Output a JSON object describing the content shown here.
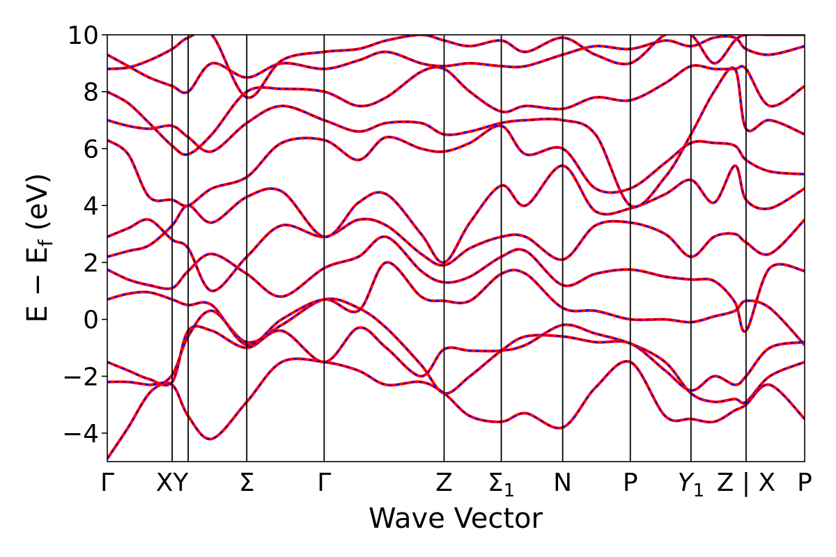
{
  "chart_data": {
    "type": "line",
    "title": "",
    "xlabel": "Wave Vector",
    "ylabel_main": "E − E",
    "ylabel_sub": "f",
    "ylabel_tail": " (eV)",
    "ylim": [
      -5,
      10
    ],
    "yticks": [
      -4,
      -2,
      0,
      2,
      4,
      6,
      8,
      10
    ],
    "ytick_labels": [
      "−4",
      "−2",
      "0",
      "2",
      "4",
      "6",
      "8",
      "10"
    ],
    "xlim": [
      0,
      1
    ],
    "grid": false,
    "legend": "none",
    "kpoints": [
      {
        "pos": 0.0,
        "label": "Γ"
      },
      {
        "pos": 0.093,
        "label": "XY"
      },
      {
        "pos": 0.2,
        "label": "Σ"
      },
      {
        "pos": 0.311,
        "label": "Γ"
      },
      {
        "pos": 0.483,
        "label": "Z"
      },
      {
        "pos": 0.565,
        "label": "Σ",
        "sub": "1"
      },
      {
        "pos": 0.653,
        "label": "N"
      },
      {
        "pos": 0.75,
        "label": "P"
      },
      {
        "pos": 0.837,
        "label": "Y",
        "sub": "1",
        "italic": true
      },
      {
        "pos": 0.916,
        "label": "Z | X"
      },
      {
        "pos": 1.0,
        "label": "P"
      }
    ],
    "kpoint_lines": [
      0.093,
      0.116,
      0.2,
      0.311,
      0.483,
      0.565,
      0.653,
      0.75,
      0.837,
      0.916
    ],
    "series_style": {
      "primary_color": "#ff0000",
      "overlay_color": "#0000ff",
      "overlay_dashed": true
    },
    "series": [
      {
        "x": [
          0,
          0.03,
          0.06,
          0.093,
          0.116,
          0.15,
          0.2,
          0.25,
          0.311,
          0.36,
          0.4,
          0.45,
          0.483,
          0.52,
          0.565,
          0.6,
          0.653,
          0.7,
          0.75,
          0.8,
          0.837,
          0.87,
          0.9,
          0.916,
          0.95,
          1.0
        ],
        "y": [
          -4.9,
          -3.8,
          -2.6,
          -1.95,
          -0.6,
          0.3,
          -0.8,
          -0.2,
          0.7,
          0.4,
          -0.3,
          -1.6,
          -2.6,
          -2.0,
          -1.1,
          -0.6,
          -0.6,
          -0.8,
          -0.85,
          -1.8,
          -2.5,
          -2.0,
          -2.3,
          -2.0,
          -1.0,
          -0.8
        ]
      },
      {
        "x": [
          0,
          0.03,
          0.06,
          0.093,
          0.116,
          0.15,
          0.2,
          0.25,
          0.311,
          0.36,
          0.4,
          0.45,
          0.483,
          0.52,
          0.565,
          0.6,
          0.653,
          0.7,
          0.75,
          0.8,
          0.837,
          0.87,
          0.9,
          0.916,
          0.95,
          1.0
        ],
        "y": [
          -1.5,
          -1.8,
          -2.1,
          -2.2,
          -0.4,
          -0.4,
          -1.0,
          -0.4,
          -1.5,
          -0.3,
          -1.0,
          -2.0,
          -1.05,
          -1.1,
          -1.1,
          -0.9,
          -0.2,
          -0.5,
          -0.85,
          -1.5,
          -2.6,
          -2.9,
          -2.8,
          -2.9,
          -2.0,
          -1.5
        ]
      },
      {
        "x": [
          0,
          0.03,
          0.06,
          0.093,
          0.116,
          0.15,
          0.2,
          0.25,
          0.311,
          0.36,
          0.4,
          0.45,
          0.483,
          0.52,
          0.565,
          0.6,
          0.653,
          0.7,
          0.75,
          0.8,
          0.837,
          0.87,
          0.9,
          0.916,
          0.95,
          1.0
        ],
        "y": [
          -2.2,
          -2.2,
          -2.3,
          -2.3,
          -3.4,
          -4.2,
          -2.9,
          -1.5,
          -1.5,
          -1.8,
          -2.3,
          -2.2,
          -2.6,
          -3.4,
          -3.6,
          -3.3,
          -3.8,
          -2.4,
          -1.5,
          -3.4,
          -3.5,
          -3.6,
          -3.2,
          -3.0,
          -2.3,
          -3.5
        ]
      },
      {
        "x": [
          0,
          0.03,
          0.06,
          0.093,
          0.116,
          0.15,
          0.2,
          0.25,
          0.311,
          0.36,
          0.4,
          0.45,
          0.483,
          0.52,
          0.565,
          0.6,
          0.653,
          0.7,
          0.75,
          0.8,
          0.837,
          0.87,
          0.9,
          0.916,
          0.95,
          1.0
        ],
        "y": [
          0.7,
          0.9,
          0.95,
          0.7,
          0.5,
          0.5,
          -0.9,
          0.0,
          0.7,
          0.3,
          2.0,
          0.8,
          0.65,
          0.65,
          1.6,
          1.6,
          0.4,
          0.3,
          0.0,
          0.0,
          -0.1,
          0.1,
          0.3,
          0.65,
          0.4,
          -0.9
        ]
      },
      {
        "x": [
          0,
          0.03,
          0.06,
          0.093,
          0.116,
          0.15,
          0.2,
          0.25,
          0.311,
          0.36,
          0.4,
          0.45,
          0.483,
          0.52,
          0.565,
          0.6,
          0.653,
          0.7,
          0.75,
          0.8,
          0.837,
          0.87,
          0.9,
          0.916,
          0.95,
          1.0
        ],
        "y": [
          1.75,
          1.4,
          1.2,
          1.1,
          1.7,
          2.3,
          1.6,
          0.8,
          1.8,
          2.2,
          2.9,
          1.7,
          1.3,
          1.5,
          2.2,
          2.4,
          1.2,
          1.6,
          1.75,
          1.5,
          1.4,
          1.35,
          0.6,
          -0.4,
          1.8,
          1.7
        ]
      },
      {
        "x": [
          0,
          0.03,
          0.06,
          0.093,
          0.116,
          0.15,
          0.2,
          0.25,
          0.311,
          0.36,
          0.4,
          0.45,
          0.483,
          0.52,
          0.565,
          0.6,
          0.653,
          0.7,
          0.75,
          0.8,
          0.837,
          0.87,
          0.9,
          0.916,
          0.95,
          1.0
        ],
        "y": [
          2.9,
          3.2,
          3.5,
          2.8,
          2.5,
          1.0,
          2.2,
          3.3,
          2.9,
          3.5,
          3.3,
          2.3,
          1.9,
          2.5,
          2.9,
          2.9,
          2.1,
          3.3,
          3.4,
          3.0,
          2.2,
          2.9,
          3.0,
          2.7,
          2.3,
          3.5
        ]
      },
      {
        "x": [
          0,
          0.03,
          0.06,
          0.093,
          0.116,
          0.15,
          0.2,
          0.25,
          0.311,
          0.36,
          0.4,
          0.45,
          0.483,
          0.52,
          0.565,
          0.6,
          0.653,
          0.7,
          0.75,
          0.8,
          0.837,
          0.87,
          0.9,
          0.916,
          0.95,
          1.0
        ],
        "y": [
          2.2,
          2.4,
          2.6,
          3.3,
          4.0,
          3.4,
          4.3,
          4.5,
          2.9,
          4.1,
          4.4,
          3.0,
          2.0,
          3.4,
          4.7,
          4.0,
          5.4,
          3.8,
          3.9,
          4.4,
          4.9,
          4.1,
          5.4,
          4.2,
          3.9,
          4.6
        ]
      },
      {
        "x": [
          0,
          0.03,
          0.06,
          0.093,
          0.116,
          0.15,
          0.2,
          0.25,
          0.311,
          0.36,
          0.4,
          0.45,
          0.483,
          0.52,
          0.565,
          0.6,
          0.653,
          0.7,
          0.75,
          0.8,
          0.837,
          0.87,
          0.9,
          0.916,
          0.95,
          1.0
        ],
        "y": [
          6.3,
          5.8,
          4.3,
          4.2,
          4.0,
          4.6,
          5.0,
          6.2,
          6.3,
          5.6,
          6.4,
          6.0,
          5.9,
          6.2,
          6.8,
          5.8,
          6.0,
          4.6,
          4.6,
          5.5,
          6.2,
          6.2,
          6.1,
          5.6,
          5.2,
          5.1
        ]
      },
      {
        "x": [
          0,
          0.03,
          0.06,
          0.093,
          0.116,
          0.15,
          0.2,
          0.25,
          0.311,
          0.36,
          0.4,
          0.45,
          0.483,
          0.52,
          0.565,
          0.6,
          0.653,
          0.7,
          0.75,
          0.8,
          0.837,
          0.87,
          0.9,
          0.916,
          0.95,
          1.0
        ],
        "y": [
          7.0,
          6.8,
          6.7,
          6.8,
          6.4,
          5.9,
          6.9,
          7.5,
          7.0,
          6.6,
          6.9,
          6.9,
          6.5,
          6.6,
          6.9,
          7.0,
          7.0,
          6.5,
          4.0,
          5.0,
          6.5,
          8.0,
          8.8,
          6.7,
          7.0,
          6.5
        ]
      },
      {
        "x": [
          0,
          0.03,
          0.06,
          0.093,
          0.116,
          0.15,
          0.2,
          0.25,
          0.311,
          0.36,
          0.4,
          0.45,
          0.483,
          0.52,
          0.565,
          0.6,
          0.653,
          0.7,
          0.75,
          0.8,
          0.837,
          0.87,
          0.9,
          0.916,
          0.95,
          1.0
        ],
        "y": [
          8.0,
          7.6,
          6.9,
          6.1,
          5.8,
          6.5,
          8.0,
          8.1,
          8.0,
          7.5,
          7.8,
          8.7,
          8.8,
          8.0,
          7.3,
          7.5,
          7.4,
          7.8,
          7.7,
          8.3,
          8.9,
          8.8,
          8.8,
          8.8,
          7.5,
          8.2
        ]
      },
      {
        "x": [
          0,
          0.03,
          0.06,
          0.093,
          0.116,
          0.15,
          0.2,
          0.25,
          0.311,
          0.36,
          0.4,
          0.45,
          0.483,
          0.52,
          0.565,
          0.6,
          0.653,
          0.7,
          0.75,
          0.8,
          0.837,
          0.87,
          0.9,
          0.916,
          0.95,
          1.0
        ],
        "y": [
          9.3,
          8.9,
          8.5,
          8.2,
          8.0,
          9.0,
          8.5,
          9.0,
          8.8,
          9.1,
          9.4,
          9.0,
          8.9,
          9.0,
          8.9,
          8.9,
          9.3,
          9.6,
          9.5,
          9.8,
          9.6,
          9.9,
          9.9,
          9.5,
          9.3,
          9.6
        ]
      },
      {
        "x": [
          0,
          0.03,
          0.06,
          0.093,
          0.116,
          0.15,
          0.2,
          0.25,
          0.311,
          0.36,
          0.4,
          0.45,
          0.483,
          0.52,
          0.565,
          0.6,
          0.653,
          0.7,
          0.75,
          0.8,
          0.837,
          0.87,
          0.9,
          0.916,
          0.95,
          1.0
        ],
        "y": [
          8.8,
          8.85,
          9.1,
          9.5,
          9.9,
          10.0,
          7.8,
          9.1,
          9.4,
          9.5,
          9.8,
          10.0,
          9.8,
          9.6,
          9.8,
          9.4,
          9.9,
          9.3,
          9.0,
          10.0,
          10.0,
          9.0,
          9.8,
          10.0,
          10.0,
          10.0
        ]
      }
    ]
  }
}
